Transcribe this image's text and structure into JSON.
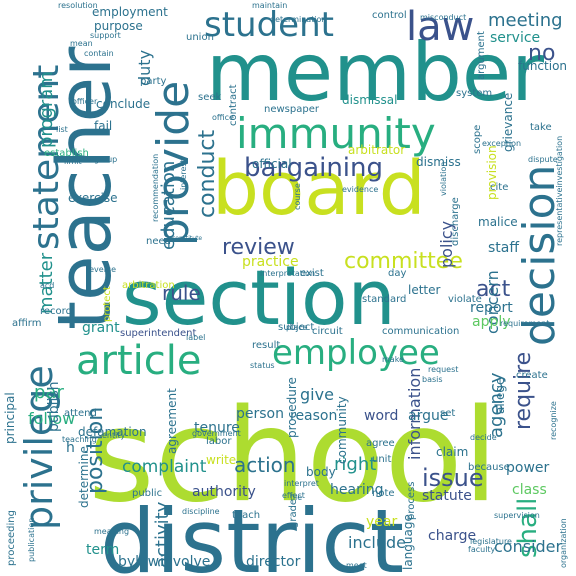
{
  "title": "",
  "palette": {
    "dark_purple": "#482475",
    "blue": "#3b528b",
    "blue_teal": "#2c728e",
    "teal": "#21918c",
    "green_teal": "#28ae80",
    "green": "#5ec962",
    "light_green": "#addc30",
    "yellow_green": "#c8e020",
    "yellow": "#dde318"
  },
  "words": [
    {
      "id": "school",
      "text": "school",
      "color": "#addc30"
    },
    {
      "id": "district",
      "text": "district",
      "color": "#2c728e"
    },
    {
      "id": "board",
      "text": "board",
      "color": "#c8e020"
    },
    {
      "id": "member",
      "text": "member",
      "color": "#21918c"
    },
    {
      "id": "teacher",
      "text": "teacher",
      "color": "#2c728e"
    },
    {
      "id": "section",
      "text": "section",
      "color": "#21918c"
    },
    {
      "id": "immunity",
      "text": "immunity",
      "color": "#28ae80"
    },
    {
      "id": "provide",
      "text": "provide",
      "color": "#2c728e"
    },
    {
      "id": "decision",
      "text": "decision",
      "color": "#2c728e"
    },
    {
      "id": "statement",
      "text": "statement",
      "color": "#2c728e"
    },
    {
      "id": "privilege",
      "text": "privilege",
      "color": "#2c728e"
    },
    {
      "id": "article",
      "text": "article",
      "color": "#28ae80"
    },
    {
      "id": "employee",
      "text": "employee",
      "color": "#28ae80"
    },
    {
      "id": "student",
      "text": "student",
      "color": "#2c728e"
    },
    {
      "id": "law",
      "text": "law",
      "color": "#3b528b"
    },
    {
      "id": "bargaining",
      "text": "bargaining",
      "color": "#3b528b"
    },
    {
      "id": "committee",
      "text": "committee",
      "color": "#c8e020"
    },
    {
      "id": "review",
      "text": "review",
      "color": "#3b528b"
    },
    {
      "id": "rule",
      "text": "rule",
      "color": "#3b528b"
    },
    {
      "id": "action",
      "text": "action",
      "color": "#2c728e"
    },
    {
      "id": "position",
      "text": "position",
      "color": "#2c728e"
    },
    {
      "id": "issue",
      "text": "issue",
      "color": "#3b528b"
    },
    {
      "id": "right",
      "text": "right",
      "color": "#21918c"
    },
    {
      "id": "shall",
      "text": "shall",
      "color": "#28ae80"
    },
    {
      "id": "conduct",
      "text": "conduct",
      "color": "#2c728e"
    },
    {
      "id": "education",
      "text": "education",
      "color": "#2c728e"
    },
    {
      "id": "matter",
      "text": "matter",
      "color": "#21918c"
    },
    {
      "id": "require",
      "text": "require",
      "color": "#3b528b"
    },
    {
      "id": "agency",
      "text": "agency",
      "color": "#2c728e"
    },
    {
      "id": "information",
      "text": "information",
      "color": "#3b528b"
    },
    {
      "id": "complaint",
      "text": "complaint",
      "color": "#21918c"
    },
    {
      "id": "meeting",
      "text": "meeting",
      "color": "#2c728e"
    },
    {
      "id": "no",
      "text": "no",
      "color": "#3b528b"
    },
    {
      "id": "duty",
      "text": "duty",
      "color": "#2c728e"
    },
    {
      "id": "program",
      "text": "program",
      "color": "#21918c"
    },
    {
      "id": "act",
      "text": "act",
      "color": "#3b528b"
    },
    {
      "id": "report",
      "text": "report",
      "color": "#2c728e"
    },
    {
      "id": "authority",
      "text": "authority",
      "color": "#3b528b"
    },
    {
      "id": "hearing",
      "text": "hearing",
      "color": "#2c728e"
    },
    {
      "id": "activity",
      "text": "activity",
      "color": "#2c728e"
    },
    {
      "id": "concern",
      "text": "concern",
      "color": "#2c728e"
    },
    {
      "id": "policy",
      "text": "policy",
      "color": "#3b528b"
    },
    {
      "id": "staff",
      "text": "staff",
      "color": "#2c728e"
    },
    {
      "id": "par",
      "text": "par",
      "color": "#28ae80"
    },
    {
      "id": "follow",
      "text": "follow",
      "color": "#28ae80"
    },
    {
      "id": "give",
      "text": "give",
      "color": "#2c728e"
    },
    {
      "id": "person",
      "text": "person",
      "color": "#2c728e"
    },
    {
      "id": "statute",
      "text": "statute",
      "color": "#3b528b"
    },
    {
      "id": "power",
      "text": "power",
      "color": "#2c728e"
    },
    {
      "id": "class",
      "text": "class",
      "color": "#5ec962"
    },
    {
      "id": "consider",
      "text": "consider",
      "color": "#2c728e"
    },
    {
      "id": "include",
      "text": "include",
      "color": "#2c728e"
    },
    {
      "id": "director",
      "text": "director",
      "color": "#2c728e"
    },
    {
      "id": "term",
      "text": "term",
      "color": "#21918c"
    },
    {
      "id": "bylaw",
      "text": "bylaw",
      "color": "#2c728e"
    },
    {
      "id": "involve",
      "text": "involve",
      "color": "#2c728e"
    },
    {
      "id": "year",
      "text": "year",
      "color": "#c8e020"
    },
    {
      "id": "charge",
      "text": "charge",
      "color": "#3b528b"
    },
    {
      "id": "reason",
      "text": "reason",
      "color": "#2c728e"
    },
    {
      "id": "word",
      "text": "word",
      "color": "#3b528b"
    },
    {
      "id": "argue",
      "text": "argue",
      "color": "#2c728e"
    },
    {
      "id": "tenure",
      "text": "tenure",
      "color": "#2c728e"
    },
    {
      "id": "practice",
      "text": "practice",
      "color": "#c8e020"
    },
    {
      "id": "letter",
      "text": "letter",
      "color": "#2c728e"
    },
    {
      "id": "apply",
      "text": "apply",
      "color": "#5ec962"
    },
    {
      "id": "publish",
      "text": "publish",
      "color": "#2c728e"
    },
    {
      "id": "agreement",
      "text": "agreement",
      "color": "#2c728e"
    },
    {
      "id": "determine",
      "text": "determine",
      "color": "#2c728e"
    },
    {
      "id": "grant",
      "text": "grant",
      "color": "#21918c"
    },
    {
      "id": "service",
      "text": "service",
      "color": "#21918c"
    },
    {
      "id": "grievance",
      "text": "grievance",
      "color": "#2c728e"
    },
    {
      "id": "dismissal",
      "text": "dismissal",
      "color": "#21918c"
    },
    {
      "id": "arbitrator",
      "text": "arbitrator",
      "color": "#c8e020"
    },
    {
      "id": "defamation",
      "text": "defamation",
      "color": "#2c728e"
    },
    {
      "id": "principal",
      "text": "principal",
      "color": "#2c728e"
    },
    {
      "id": "employment",
      "text": "employment",
      "color": "#2c728e"
    },
    {
      "id": "purpose",
      "text": "purpose",
      "color": "#2c728e"
    },
    {
      "id": "function",
      "text": "function",
      "color": "#2c728e"
    },
    {
      "id": "provision",
      "text": "provision",
      "color": "#c8e020"
    },
    {
      "id": "official",
      "text": "official",
      "color": "#2c728e"
    },
    {
      "id": "malice",
      "text": "malice",
      "color": "#2c728e"
    },
    {
      "id": "dismiss",
      "text": "dismiss",
      "color": "#2c728e"
    },
    {
      "id": "conclude",
      "text": "conclude",
      "color": "#2c728e"
    },
    {
      "id": "fail",
      "text": "fail",
      "color": "#2c728e"
    },
    {
      "id": "exercise",
      "text": "exercise",
      "color": "#2c728e"
    },
    {
      "id": "establish",
      "text": "establish",
      "color": "#28ae80"
    },
    {
      "id": "affirm",
      "text": "affirm",
      "color": "#2c728e"
    },
    {
      "id": "record",
      "text": "record",
      "color": "#2c728e"
    },
    {
      "id": "arbitration",
      "text": "arbitration",
      "color": "#c8e020"
    },
    {
      "id": "protect",
      "text": "protect",
      "color": "#c8e020"
    },
    {
      "id": "superintendent",
      "text": "superintendent",
      "color": "#3b528b"
    },
    {
      "id": "circuit",
      "text": "circuit",
      "color": "#2c728e"
    },
    {
      "id": "communication",
      "text": "communication",
      "color": "#2c728e"
    },
    {
      "id": "standard",
      "text": "standard",
      "color": "#2c728e"
    },
    {
      "id": "violate",
      "text": "violate",
      "color": "#2c728e"
    },
    {
      "id": "agree",
      "text": "agree",
      "color": "#2c728e"
    },
    {
      "id": "unit",
      "text": "unit",
      "color": "#2c728e"
    },
    {
      "id": "claim",
      "text": "claim",
      "color": "#2c728e"
    },
    {
      "id": "body",
      "text": "body",
      "color": "#2c728e"
    },
    {
      "id": "note",
      "text": "note",
      "color": "#2c728e"
    },
    {
      "id": "process",
      "text": "process",
      "color": "#2c728e"
    },
    {
      "id": "teach",
      "text": "teach",
      "color": "#2c728e"
    },
    {
      "id": "create",
      "text": "create",
      "color": "#2c728e"
    },
    {
      "id": "allege",
      "text": "allege",
      "color": "#2c728e"
    },
    {
      "id": "write",
      "text": "write",
      "color": "#c8e020"
    },
    {
      "id": "labor",
      "text": "labor",
      "color": "#2c728e"
    },
    {
      "id": "attend",
      "text": "attend",
      "color": "#2c728e"
    },
    {
      "id": "public",
      "text": "public",
      "color": "#2c728e"
    },
    {
      "id": "procedure",
      "text": "procedure",
      "color": "#2c728e"
    },
    {
      "id": "community",
      "text": "community",
      "color": "#2c728e"
    },
    {
      "id": "language",
      "text": "language",
      "color": "#2c728e"
    },
    {
      "id": "because",
      "text": "because",
      "color": "#2c728e"
    },
    {
      "id": "set",
      "text": "set",
      "color": "#2c728e"
    },
    {
      "id": "result",
      "text": "result",
      "color": "#2c728e"
    },
    {
      "id": "subject",
      "text": "subject",
      "color": "#2c728e"
    },
    {
      "id": "exist",
      "text": "exist",
      "color": "#2c728e"
    },
    {
      "id": "day",
      "text": "day",
      "color": "#2c728e"
    },
    {
      "id": "contract",
      "text": "contract",
      "color": "#2c728e"
    },
    {
      "id": "newspaper",
      "text": "newspaper",
      "color": "#2c728e"
    },
    {
      "id": "union",
      "text": "union",
      "color": "#2c728e"
    },
    {
      "id": "party",
      "text": "party",
      "color": "#2c728e"
    },
    {
      "id": "seek",
      "text": "seek",
      "color": "#2c728e"
    },
    {
      "id": "system",
      "text": "system",
      "color": "#2c728e"
    },
    {
      "id": "control",
      "text": "control",
      "color": "#2c728e"
    },
    {
      "id": "argument",
      "text": "argument",
      "color": "#2c728e"
    },
    {
      "id": "scope",
      "text": "scope",
      "color": "#2c728e"
    },
    {
      "id": "cite",
      "text": "cite",
      "color": "#2c728e"
    },
    {
      "id": "take",
      "text": "take",
      "color": "#2c728e"
    },
    {
      "id": "need",
      "text": "need",
      "color": "#2c728e"
    },
    {
      "id": "recommendation",
      "text": "recommendation",
      "color": "#2c728e"
    },
    {
      "id": "interest",
      "text": "interest",
      "color": "#2c728e"
    },
    {
      "id": "violation",
      "text": "violation",
      "color": "#2c728e"
    },
    {
      "id": "discharge",
      "text": "discharge",
      "color": "#2c728e"
    },
    {
      "id": "evidence",
      "text": "evidence",
      "color": "#2c728e"
    },
    {
      "id": "office",
      "text": "office",
      "color": "#2c728e"
    },
    {
      "id": "maintain",
      "text": "maintain",
      "color": "#2c728e"
    },
    {
      "id": "determination",
      "text": "determination",
      "color": "#2c728e"
    },
    {
      "id": "resolution",
      "text": "resolution",
      "color": "#2c728e"
    },
    {
      "id": "misconduct",
      "text": "misconduct",
      "color": "#2c728e"
    },
    {
      "id": "support",
      "text": "support",
      "color": "#2c728e"
    },
    {
      "id": "contain",
      "text": "contain",
      "color": "#2c728e"
    },
    {
      "id": "mean",
      "text": "mean",
      "color": "#2c728e"
    },
    {
      "id": "limit",
      "text": "limit",
      "color": "#2c728e"
    },
    {
      "id": "group",
      "text": "group",
      "color": "#2c728e"
    },
    {
      "id": "exception",
      "text": "exception",
      "color": "#2c728e"
    },
    {
      "id": "dispute",
      "text": "dispute",
      "color": "#2c728e"
    },
    {
      "id": "course",
      "text": "course",
      "color": "#2c728e"
    },
    {
      "id": "interpretation",
      "text": "interpretation",
      "color": "#2c728e"
    },
    {
      "id": "constitute",
      "text": "constitute",
      "color": "#2c728e"
    },
    {
      "id": "reverse",
      "text": "reverse",
      "color": "#2c728e"
    },
    {
      "id": "requirement",
      "text": "requirement",
      "color": "#2c728e"
    },
    {
      "id": "representative",
      "text": "representativeinvestigation",
      "color": "#2c728e"
    },
    {
      "id": "basis",
      "text": "basis",
      "color": "#2c728e"
    },
    {
      "id": "request",
      "text": "request",
      "color": "#2c728e"
    },
    {
      "id": "recognize",
      "text": "recognize",
      "color": "#2c728e"
    },
    {
      "id": "supervision",
      "text": "supervision",
      "color": "#2c728e"
    },
    {
      "id": "organization",
      "text": "organization",
      "color": "#2c728e"
    },
    {
      "id": "legislature",
      "text": "legislature",
      "color": "#2c728e"
    },
    {
      "id": "faculty",
      "text": "faculty",
      "color": "#2c728e"
    },
    {
      "id": "discipline",
      "text": "discipline",
      "color": "#2c728e"
    },
    {
      "id": "grade",
      "text": "grade",
      "color": "#2c728e"
    },
    {
      "id": "government",
      "text": "government",
      "color": "#2c728e"
    },
    {
      "id": "proceeding",
      "text": "proceeding",
      "color": "#2c728e"
    },
    {
      "id": "publication",
      "text": "publication",
      "color": "#2c728e"
    },
    {
      "id": "teaching",
      "text": "teaching",
      "color": "#2c728e"
    },
    {
      "id": "meaning",
      "text": "meaning",
      "color": "#2c728e"
    },
    {
      "id": "file",
      "text": "file",
      "color": "#2c728e"
    },
    {
      "id": "meet",
      "text": "meet",
      "color": "#2c728e"
    },
    {
      "id": "entity",
      "text": "entity",
      "color": "#2c728e"
    },
    {
      "id": "place",
      "text": "place",
      "color": "#2c728e"
    },
    {
      "id": "status",
      "text": "status",
      "color": "#2c728e"
    },
    {
      "id": "make",
      "text": "make",
      "color": "#2c728e"
    },
    {
      "id": "label",
      "text": "label",
      "color": "#2c728e"
    },
    {
      "id": "acd",
      "text": "acd",
      "color": "#2c728e"
    },
    {
      "id": "officer",
      "text": "officer",
      "color": "#2c728e"
    },
    {
      "id": "list",
      "text": "list",
      "color": "#2c728e"
    },
    {
      "id": "interpret",
      "text": "interpret",
      "color": "#2c728e"
    },
    {
      "id": "effect",
      "text": "effect",
      "color": "#2c728e"
    },
    {
      "id": "decide",
      "text": "decide",
      "color": "#2c728e"
    },
    {
      "id": "h",
      "text": "h",
      "color": "#2c728e"
    }
  ]
}
